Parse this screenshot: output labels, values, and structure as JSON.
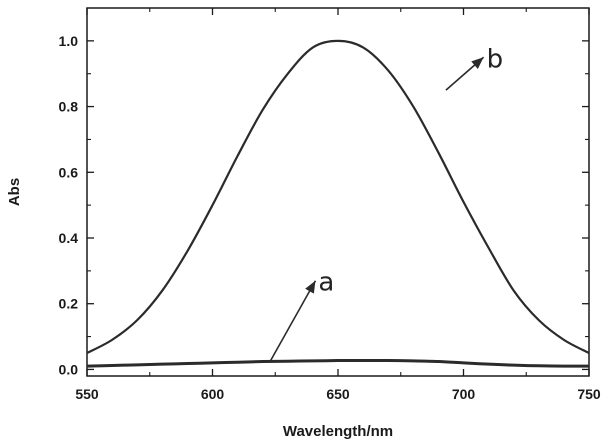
{
  "chart_data": {
    "type": "line",
    "xlabel": "Wavelength/nm",
    "ylabel": "Abs",
    "xlim": [
      550,
      750
    ],
    "ylim": [
      -0.02,
      1.1
    ],
    "x_ticks": [
      550,
      600,
      650,
      700,
      750
    ],
    "y_ticks": [
      0.0,
      0.2,
      0.4,
      0.6,
      0.8,
      1.0
    ],
    "y_tick_labels": [
      "0.0",
      "0.2",
      "0.4",
      "0.6",
      "0.8",
      "1.0"
    ],
    "grid": false,
    "series": [
      {
        "name": "a",
        "x": [
          550,
          560,
          570,
          580,
          590,
          600,
          610,
          620,
          630,
          640,
          650,
          660,
          670,
          680,
          690,
          700,
          710,
          720,
          730,
          740,
          750
        ],
        "y": [
          0.01,
          0.012,
          0.014,
          0.016,
          0.018,
          0.02,
          0.022,
          0.024,
          0.025,
          0.026,
          0.027,
          0.027,
          0.027,
          0.026,
          0.024,
          0.02,
          0.016,
          0.013,
          0.011,
          0.01,
          0.01
        ]
      },
      {
        "name": "b",
        "x": [
          550,
          560,
          570,
          580,
          590,
          600,
          610,
          620,
          630,
          640,
          650,
          660,
          670,
          680,
          690,
          700,
          710,
          720,
          730,
          740,
          750
        ],
        "y": [
          0.05,
          0.09,
          0.15,
          0.24,
          0.36,
          0.5,
          0.65,
          0.79,
          0.9,
          0.98,
          1.0,
          0.98,
          0.91,
          0.8,
          0.66,
          0.51,
          0.37,
          0.24,
          0.15,
          0.09,
          0.05
        ]
      }
    ],
    "annotations": [
      {
        "text": "a",
        "arrow_from": [
          623,
          0.025
        ],
        "arrow_to": [
          641,
          0.27
        ]
      },
      {
        "text": "b",
        "arrow_from": [
          693,
          0.85
        ],
        "arrow_to": [
          708,
          0.95
        ]
      }
    ]
  }
}
